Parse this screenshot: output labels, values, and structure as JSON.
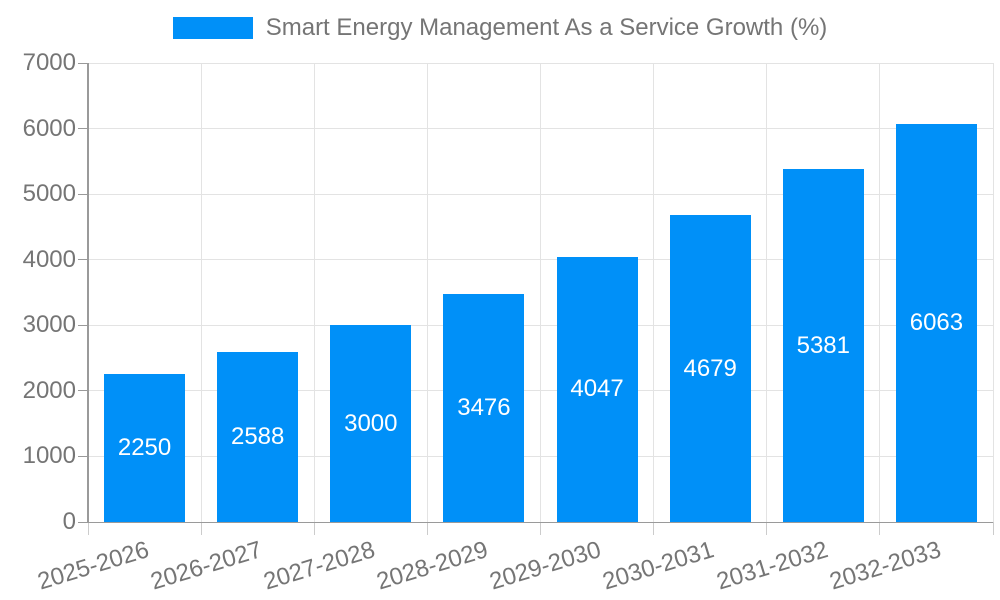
{
  "chart_data": {
    "type": "bar",
    "title": "Smart Energy Management As a Service Growth (%)",
    "categories": [
      "2025-2026",
      "2026-2027",
      "2027-2028",
      "2028-2029",
      "2029-2030",
      "2030-2031",
      "2031-2032",
      "2032-2033"
    ],
    "values": [
      2250,
      2588,
      3000,
      3476,
      4047,
      4679,
      5381,
      6063
    ],
    "series_name": "Smart Energy Management As a Service Growth (%)",
    "xlabel": "",
    "ylabel": "",
    "ylim": [
      0,
      7000
    ],
    "ytick_step": 1000,
    "ytick_labels": [
      "0",
      "1000",
      "2000",
      "3000",
      "4000",
      "5000",
      "6000",
      "7000"
    ],
    "grid": true,
    "legend_position": "top-center",
    "value_labels": "inside-center",
    "x_label_rotation_deg": -17,
    "colors": {
      "bar": "#0090F8",
      "value_label": "#ffffff",
      "title_text": "#757575",
      "tick_label": "#757575",
      "grid_line": "#e3e3e3",
      "axis_line": "#9a9a9a",
      "y_tick_mark": "#999999",
      "x_tick_mark": "#cccccc",
      "background": "#ffffff"
    }
  }
}
